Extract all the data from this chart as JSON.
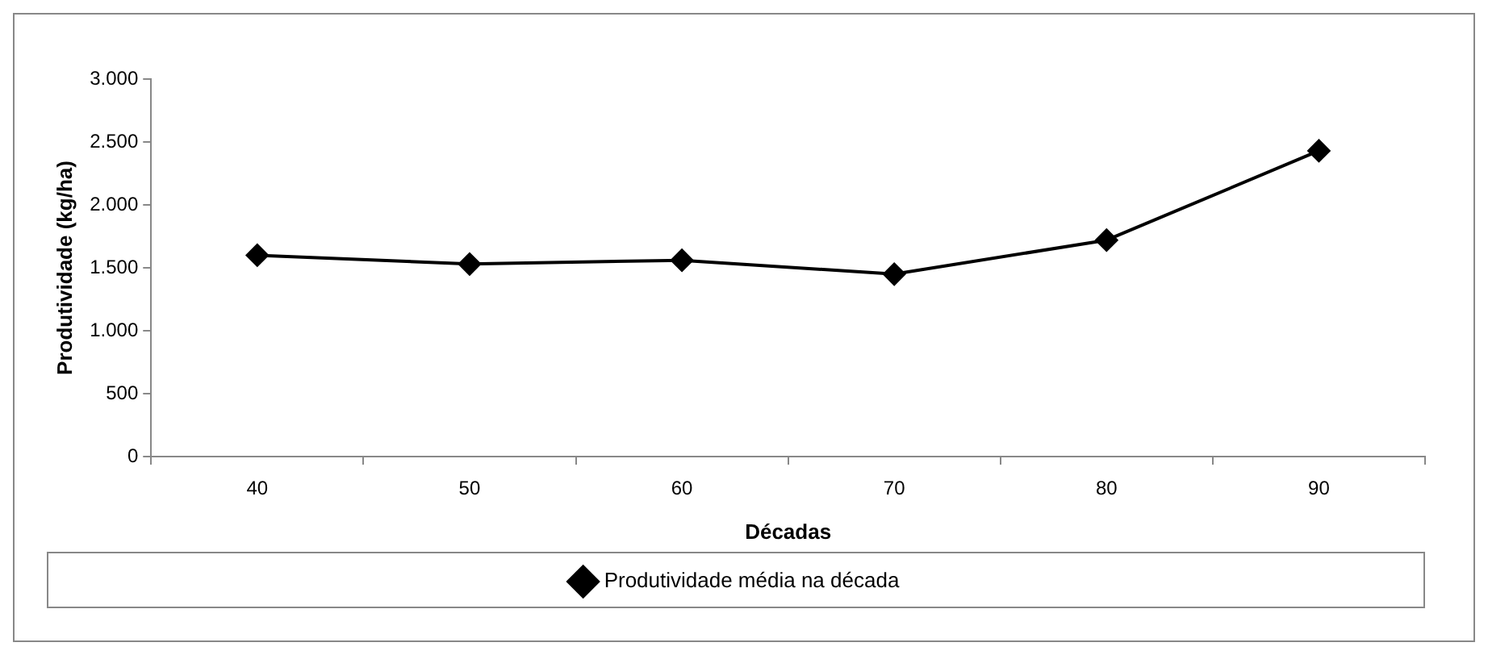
{
  "chart_data": {
    "type": "line",
    "xlabel": "Décadas",
    "ylabel": "Produtividade (kg/ha)",
    "categories": [
      "40",
      "50",
      "60",
      "70",
      "80",
      "90"
    ],
    "series": [
      {
        "name": "Produtividade média na década",
        "color": "#000000",
        "values": [
          1600,
          1530,
          1560,
          1450,
          1720,
          2430
        ]
      }
    ],
    "ylim": [
      0,
      3000
    ],
    "yticks": [
      0,
      500,
      {
        "value": 1000,
        "label": "1.000"
      },
      {
        "value": 1500,
        "label": "1.500"
      },
      {
        "value": 2000,
        "label": "2.000"
      },
      {
        "value": 2500,
        "label": "2.500"
      },
      {
        "value": 3000,
        "label": "3.000"
      }
    ],
    "grid": false,
    "legend": "bottom",
    "marker": "diamond",
    "line_style": "solid"
  }
}
